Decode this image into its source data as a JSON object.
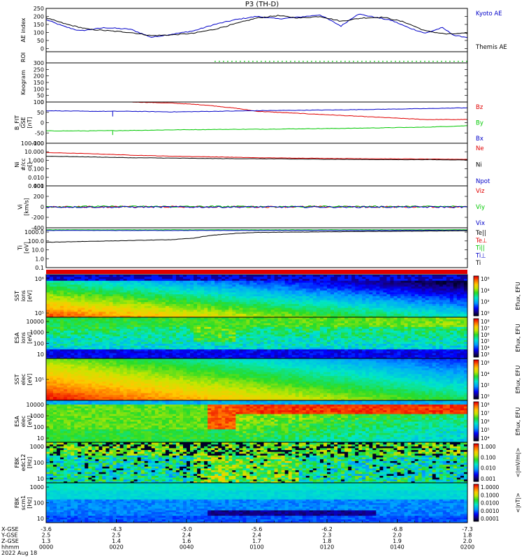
{
  "chart_data": {
    "type": "multi-panel-timeseries",
    "title": "P3 (TH-D)",
    "panels": [
      {
        "id": "ae",
        "ylabel": [
          "AE index"
        ],
        "ylim": [
          -20,
          250
        ],
        "ticks": [
          0,
          50,
          100,
          150,
          200,
          250
        ],
        "series": [
          {
            "name": "Kyoto AE",
            "color": "#0000c8",
            "t": [
              0,
              0.04,
              0.08,
              0.14,
              0.2,
              0.25,
              0.3,
              0.35,
              0.4,
              0.45,
              0.5,
              0.55,
              0.6,
              0.65,
              0.7,
              0.74,
              0.78,
              0.82,
              0.86,
              0.9,
              0.94,
              0.97,
              1.0
            ],
            "v": [
              180,
              140,
              110,
              130,
              120,
              70,
              90,
              110,
              150,
              180,
              200,
              185,
              195,
              210,
              140,
              215,
              195,
              175,
              130,
              95,
              130,
              80,
              70
            ]
          },
          {
            "name": "Themis AE",
            "color": "#000000",
            "t": [
              0,
              0.05,
              0.1,
              0.15,
              0.2,
              0.25,
              0.3,
              0.35,
              0.4,
              0.45,
              0.5,
              0.55,
              0.6,
              0.65,
              0.7,
              0.75,
              0.8,
              0.85,
              0.9,
              0.95,
              1.0
            ],
            "v": [
              190,
              150,
              120,
              110,
              100,
              80,
              85,
              95,
              120,
              155,
              190,
              205,
              190,
              200,
              170,
              190,
              195,
              165,
              110,
              90,
              95
            ]
          }
        ]
      },
      {
        "id": "roi",
        "ylabel": [
          "ROI"
        ],
        "ylim": [
          0,
          1
        ],
        "ticks": [],
        "dotted_from": 0.4,
        "dot_color": "#00c800"
      },
      {
        "id": "keo",
        "ylabel": [
          "Keogram"
        ],
        "ylim": [
          0,
          300
        ],
        "ticks": [
          0,
          50,
          100,
          150,
          200,
          250,
          300
        ]
      },
      {
        "id": "bfit",
        "ylabel": [
          "B_FIT",
          "GSE",
          "[nT]"
        ],
        "ylim": [
          -100,
          100
        ],
        "ticks": [
          -100,
          -50,
          0,
          50,
          100
        ],
        "series": [
          {
            "name": "Bz",
            "color": "#e00000",
            "t": [
              0.2,
              0.3,
              0.38,
              0.45,
              0.5,
              0.6,
              0.7,
              0.8,
              0.9,
              1.0
            ],
            "v": [
              100,
              95,
              85,
              70,
              55,
              45,
              35,
              25,
              15,
              15
            ]
          },
          {
            "name": "By",
            "color": "#00c800",
            "t": [
              0,
              0.1,
              0.2,
              0.3,
              0.4,
              0.5,
              0.6,
              0.7,
              0.8,
              0.9,
              1.0
            ],
            "v": [
              -40,
              -40,
              -38,
              -35,
              -33,
              -32,
              -30,
              -28,
              -25,
              -22,
              -15
            ]
          },
          {
            "name": "Bx",
            "color": "#0000c8",
            "t": [
              0,
              0.1,
              0.2,
              0.3,
              0.4,
              0.5,
              0.6,
              0.7,
              0.8,
              0.9,
              1.0
            ],
            "v": [
              58,
              55,
              55,
              52,
              55,
              58,
              60,
              62,
              65,
              68,
              72
            ]
          }
        ]
      },
      {
        "id": "ni",
        "ylabel": [
          "Ni",
          "#/cc",
          "[]"
        ],
        "log": true,
        "ylim": [
          0.001,
          100
        ],
        "ticks": [
          0.001,
          0.01,
          0.1,
          1,
          10,
          100
        ],
        "tick_labels": [
          "0.001",
          "0.010",
          "0.100",
          "1.000",
          "10.000",
          "100.000"
        ],
        "series": [
          {
            "name": "Ne",
            "color": "#e00000",
            "t": [
              0,
              0.1,
              0.2,
              0.3,
              0.4,
              0.5,
              0.6,
              0.7,
              0.8,
              0.9,
              1.0
            ],
            "v": [
              8,
              6,
              4,
              3,
              2.5,
              2,
              1.8,
              1.6,
              1.5,
              1.4,
              1.3
            ]
          },
          {
            "name": "Ni",
            "color": "#000000",
            "t": [
              0,
              0.1,
              0.2,
              0.3,
              0.4,
              0.5,
              0.6,
              0.7,
              0.8,
              0.9,
              1.0
            ],
            "v": [
              3,
              2.5,
              2,
              1.8,
              1.6,
              1.5,
              1.4,
              1.3,
              1.2,
              1.2,
              1.1
            ]
          },
          {
            "name": "Npot",
            "color": "#0000c8",
            "t": [],
            "v": []
          }
        ]
      },
      {
        "id": "vi",
        "ylabel": [
          "Vi",
          "[km/s]"
        ],
        "ylim": [
          -400,
          400
        ],
        "ticks": [
          -400,
          -200,
          0,
          200,
          400
        ],
        "series": [
          {
            "name": "Viz",
            "color": "#e00000",
            "t": [
              0,
              1
            ],
            "v": [
              0,
              0
            ]
          },
          {
            "name": "Viy",
            "color": "#00c800",
            "t": [
              0,
              1
            ],
            "v": [
              5,
              5
            ]
          },
          {
            "name": "Vix",
            "color": "#0000c8",
            "t": [
              0,
              1
            ],
            "v": [
              -3,
              -3
            ]
          }
        ]
      },
      {
        "id": "ti",
        "ylabel": [
          "Ti",
          "[eV]"
        ],
        "log": true,
        "ylim": [
          0.1,
          3000
        ],
        "ticks": [
          0.1,
          1,
          10,
          100,
          1000
        ],
        "tick_labels": [
          "0.1",
          "1.0",
          "10.0",
          "100.0",
          "1000.0"
        ],
        "series": [
          {
            "name": "Te||",
            "color": "#000000",
            "t": [],
            "v": []
          },
          {
            "name": "Te⊥",
            "color": "#e00000",
            "t": [],
            "v": []
          },
          {
            "name": "Ti||",
            "color": "#00c800",
            "t": [
              0,
              0.2,
              0.4,
              0.6,
              0.8,
              1.0
            ],
            "v": [
              1800,
              1800,
              1800,
              1800,
              1800,
              1800
            ]
          },
          {
            "name": "Ti⊥",
            "color": "#0000c8",
            "t": [
              0,
              0.2,
              0.4,
              0.6,
              0.8,
              1.0
            ],
            "v": [
              1500,
              1500,
              1500,
              1500,
              1500,
              1500
            ]
          },
          {
            "name": "Ti",
            "color": "#000000",
            "t": [
              0,
              0.1,
              0.2,
              0.3,
              0.35,
              0.4,
              0.45,
              0.5,
              0.6,
              0.7,
              0.8,
              0.9,
              1.0
            ],
            "v": [
              70,
              90,
              110,
              140,
              200,
              450,
              700,
              900,
              1000,
              1100,
              1200,
              1300,
              1400
            ]
          }
        ]
      },
      {
        "id": "sst_i",
        "ylabel": [
          "SST",
          "ions",
          "[eV]"
        ],
        "ticks": [
          "10⁶",
          "10⁵"
        ],
        "spectrogram": "sst_i",
        "colorbar": {
          "label": "Eflux, EFU",
          "ticks": [
            "10⁶",
            "10⁴",
            "10²",
            "10⁰"
          ]
        }
      },
      {
        "id": "esa_i",
        "ylabel": [
          "ESA",
          "ions",
          "[eV]"
        ],
        "log": true,
        "ticks": [
          "10000",
          "1000",
          "100",
          "10"
        ],
        "spectrogram": "esa_i",
        "colorbar": {
          "label": "Eflux, EFU",
          "ticks": [
            "10⁸",
            "10⁷",
            "10⁶",
            "10⁵",
            "10⁴",
            "10³"
          ]
        }
      },
      {
        "id": "sst_e",
        "ylabel": [
          "SST",
          "elec",
          "[eV]"
        ],
        "ticks": [
          "10⁵"
        ],
        "spectrogram": "sst_e",
        "colorbar": {
          "label": "Eflux, EFU",
          "ticks": [
            "10⁶",
            "10⁴",
            "10²",
            "10⁰"
          ]
        }
      },
      {
        "id": "esa_e",
        "ylabel": [
          "ESA",
          "elec",
          "[eV]"
        ],
        "log": true,
        "ticks": [
          "10000",
          "1000",
          "100",
          "10"
        ],
        "spectrogram": "esa_e",
        "colorbar": {
          "label": "Eflux, EFU",
          "ticks": [
            "10⁸",
            "10⁷",
            "10⁶",
            "10⁵",
            "10⁴"
          ]
        }
      },
      {
        "id": "fbk_e",
        "ylabel": [
          "FBK",
          "edc12",
          "[Hz]"
        ],
        "ticks": [
          "1000",
          "100",
          "10"
        ],
        "spectrogram": "fbk_e",
        "colorbar": {
          "label": "<|mV/m|>",
          "ticks": [
            "1.000",
            "0.100",
            "0.010",
            "0.001"
          ]
        }
      },
      {
        "id": "fbk_b",
        "ylabel": [
          "FBK",
          "scm1",
          "[Hz]"
        ],
        "ticks": [
          "1000",
          "100",
          "10"
        ],
        "spectrogram": "fbk_b",
        "colorbar": {
          "label": "<|nT|>",
          "ticks": [
            "1.0000",
            "0.1000",
            "0.0100",
            "0.0010",
            "0.0001"
          ]
        }
      }
    ],
    "xaxis": {
      "row_labels": [
        "X-GSE",
        "Y-GSE",
        "Z-GSE",
        "hhmm",
        "2022 Aug 18"
      ],
      "columns": [
        [
          "-3.6",
          "2.5",
          "1.3",
          "0000"
        ],
        [
          "-4.3",
          "2.5",
          "1.4",
          "0020"
        ],
        [
          "-5.0",
          "2.4",
          "1.6",
          "0040"
        ],
        [
          "-5.6",
          "2.4",
          "1.7",
          "0100"
        ],
        [
          "-6.2",
          "2.3",
          "1.8",
          "0120"
        ],
        [
          "-6.8",
          "2.0",
          "1.9",
          "0140"
        ],
        [
          "-7.3",
          "1.8",
          "2.0",
          "0200"
        ]
      ]
    }
  }
}
